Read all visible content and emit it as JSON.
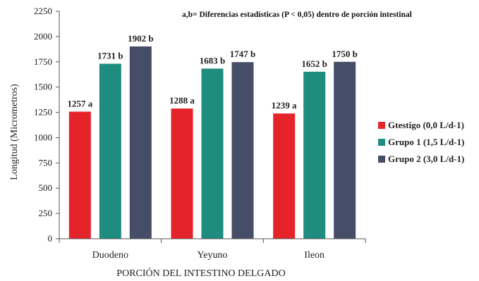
{
  "chart_data": {
    "type": "bar",
    "title": "",
    "annotation": "a,b= Diferencias estadísticas (P < 0,05) dentro de porción intestinal",
    "xlabel": "PORCIÓN DEL INTESTINO DELGADO",
    "ylabel": "Longitud (Micrometros)",
    "categories": [
      "Duodeno",
      "Yeyuno",
      "Ileon"
    ],
    "ylim": [
      0,
      2250
    ],
    "yticks": [
      0,
      250,
      500,
      750,
      1000,
      1250,
      1500,
      1750,
      2000,
      2250
    ],
    "grid": false,
    "legend_position": "right",
    "series": [
      {
        "name": "Gtestigo (0,0 L/d-1)",
        "color": "#e5232b",
        "values": [
          1257,
          1288,
          1239
        ],
        "labels": [
          "1257 a",
          "1288 a",
          "1239 a"
        ]
      },
      {
        "name": "Grupo 1 (1,5 L/d-1)",
        "color": "#1e8c7e",
        "values": [
          1731,
          1683,
          1652
        ],
        "labels": [
          "1731 b",
          "1683 b",
          "1652 b"
        ]
      },
      {
        "name": "Grupo 2 (3,0 L/d-1)",
        "color": "#454d67",
        "values": [
          1902,
          1747,
          1750
        ],
        "labels": [
          "1902 b",
          "1747 b",
          "1750 b"
        ]
      }
    ]
  }
}
